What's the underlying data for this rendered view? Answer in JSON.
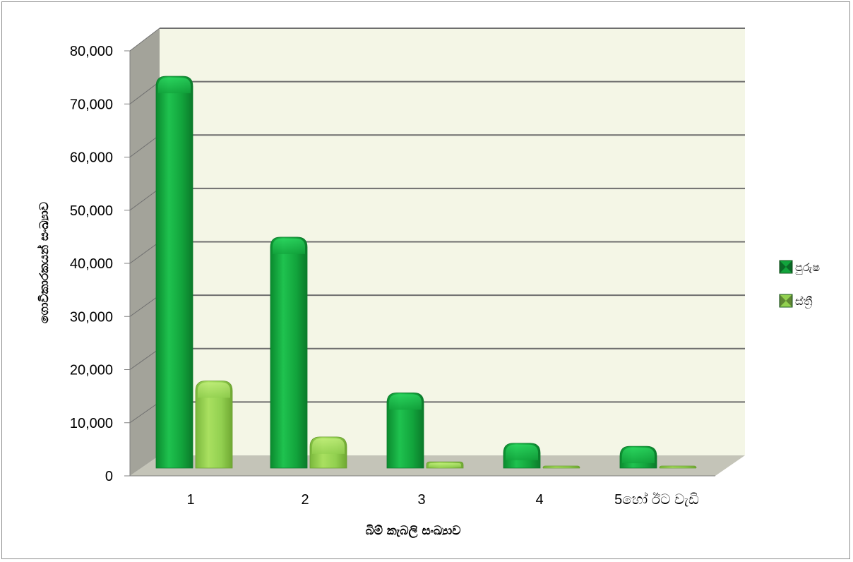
{
  "chart_data": {
    "type": "bar",
    "categories": [
      "1",
      "2",
      "3",
      "4",
      "5හෝ ඊට වැඩි"
    ],
    "series": [
      {
        "name": "පුරුෂ",
        "values": [
          75500,
          44500,
          14500,
          4800,
          4200
        ],
        "color": "#12a43c"
      },
      {
        "name": "ස්ත්‍රී",
        "values": [
          16800,
          6000,
          1200,
          400,
          400
        ],
        "color": "#92d050"
      }
    ],
    "ylim": [
      0,
      80000
    ],
    "yticks": [
      "0",
      "10,000",
      "20,000",
      "30,000",
      "40,000",
      "50,000",
      "60,000",
      "70,000",
      "80,000"
    ],
    "ylabel": "ගොවිකාරකයන් සංඛ්‍යාව",
    "xlabel": "බිම් කැබලි සංඛ්‍යාව",
    "legend_position": "right",
    "grid": true,
    "style": "3d-cylinder"
  }
}
